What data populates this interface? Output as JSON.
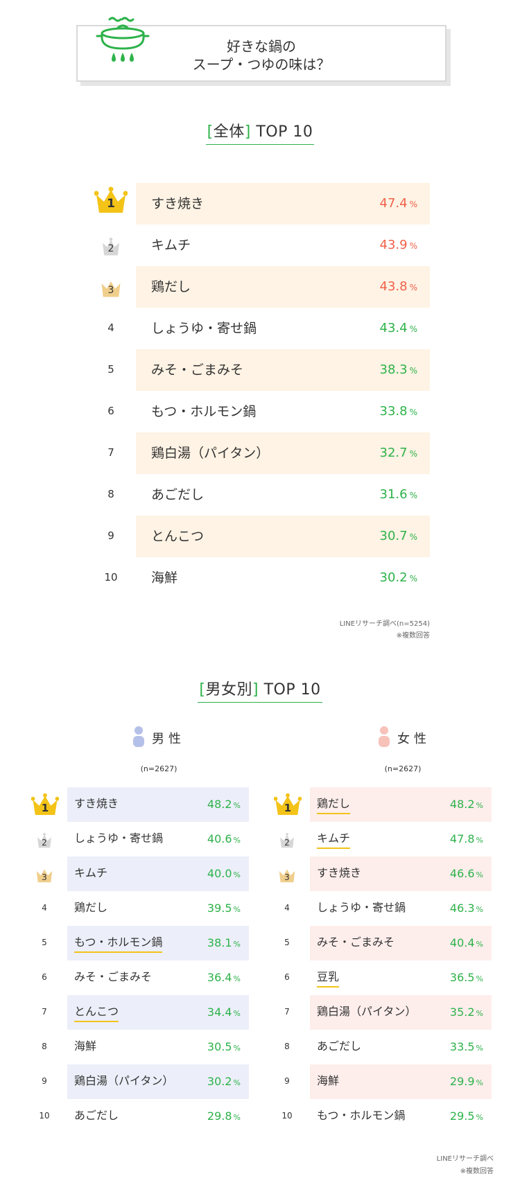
{
  "header": {
    "title_line1": "好きな鍋の",
    "title_line2": "スープ・つゆの味は？"
  },
  "overall": {
    "heading_bracket_open": "[",
    "heading_label": "全体",
    "heading_bracket_close": "]",
    "heading_top": "TOP 10",
    "source_note": "LINEリサーチ調べ(n=5254)",
    "multi_note": "※複数回答"
  },
  "gender": {
    "heading_bracket_open": "[",
    "heading_label": "男女別",
    "heading_bracket_close": "]",
    "heading_top": "TOP 10",
    "male_label": "男性",
    "female_label": "女性",
    "male_n": "(n=2627)",
    "female_n": "(n=2627)",
    "source_note": "LINEリサーチ調べ",
    "multi_note": "※複数回答"
  },
  "pct_symbol": "%",
  "colors": {
    "green": "#2db24a",
    "red": "#f0614a",
    "gold": "#f3c318",
    "silver": "#d6d6d6",
    "bronze": "#f0cf8c",
    "overall_shade": "#fef3e4",
    "male_shade": "#eceff9",
    "female_shade": "#fdeeec"
  },
  "chart_data": [
    {
      "type": "table",
      "title": "[全体] TOP 10",
      "columns": [
        "rank",
        "name",
        "value"
      ],
      "rows": [
        {
          "rank": "1",
          "name": "すき焼き",
          "value": "47.4"
        },
        {
          "rank": "2",
          "name": "キムチ",
          "value": "43.9"
        },
        {
          "rank": "3",
          "name": "鶏だし",
          "value": "43.8"
        },
        {
          "rank": "4",
          "name": "しょうゆ・寄せ鍋",
          "value": "43.4"
        },
        {
          "rank": "5",
          "name": "みそ・ごまみそ",
          "value": "38.3"
        },
        {
          "rank": "6",
          "name": "もつ・ホルモン鍋",
          "value": "33.8"
        },
        {
          "rank": "7",
          "name": "鶏白湯（パイタン）",
          "value": "32.7"
        },
        {
          "rank": "8",
          "name": "あごだし",
          "value": "31.6"
        },
        {
          "rank": "9",
          "name": "とんこつ",
          "value": "30.7"
        },
        {
          "rank": "10",
          "name": "海鮮",
          "value": "30.2"
        }
      ]
    },
    {
      "type": "table",
      "title": "男性",
      "columns": [
        "rank",
        "name",
        "value"
      ],
      "rows": [
        {
          "rank": "1",
          "name": "すき焼き",
          "value": "48.2"
        },
        {
          "rank": "2",
          "name": "しょうゆ・寄せ鍋",
          "value": "40.6"
        },
        {
          "rank": "3",
          "name": "キムチ",
          "value": "40.0"
        },
        {
          "rank": "4",
          "name": "鶏だし",
          "value": "39.5"
        },
        {
          "rank": "5",
          "name": "もつ・ホルモン鍋",
          "value": "38.1"
        },
        {
          "rank": "6",
          "name": "みそ・ごまみそ",
          "value": "36.4"
        },
        {
          "rank": "7",
          "name": "とんこつ",
          "value": "34.4"
        },
        {
          "rank": "8",
          "name": "海鮮",
          "value": "30.5"
        },
        {
          "rank": "9",
          "name": "鶏白湯（パイタン）",
          "value": "30.2"
        },
        {
          "rank": "10",
          "name": "あごだし",
          "value": "29.8"
        }
      ]
    },
    {
      "type": "table",
      "title": "女性",
      "columns": [
        "rank",
        "name",
        "value"
      ],
      "rows": [
        {
          "rank": "1",
          "name": "鶏だし",
          "value": "48.2"
        },
        {
          "rank": "2",
          "name": "キムチ",
          "value": "47.8"
        },
        {
          "rank": "3",
          "name": "すき焼き",
          "value": "46.6"
        },
        {
          "rank": "4",
          "name": "しょうゆ・寄せ鍋",
          "value": "46.3"
        },
        {
          "rank": "5",
          "name": "みそ・ごまみそ",
          "value": "40.4"
        },
        {
          "rank": "6",
          "name": "豆乳",
          "value": "36.5"
        },
        {
          "rank": "7",
          "name": "鶏白湯（パイタン）",
          "value": "35.2"
        },
        {
          "rank": "8",
          "name": "あごだし",
          "value": "33.5"
        },
        {
          "rank": "9",
          "name": "海鮮",
          "value": "29.9"
        },
        {
          "rank": "10",
          "name": "もつ・ホルモン鍋",
          "value": "29.5"
        }
      ]
    }
  ],
  "male_underlined": [
    "もつ・ホルモン鍋",
    "とんこつ"
  ],
  "female_underlined": [
    "鶏だし",
    "キムチ",
    "豆乳"
  ]
}
